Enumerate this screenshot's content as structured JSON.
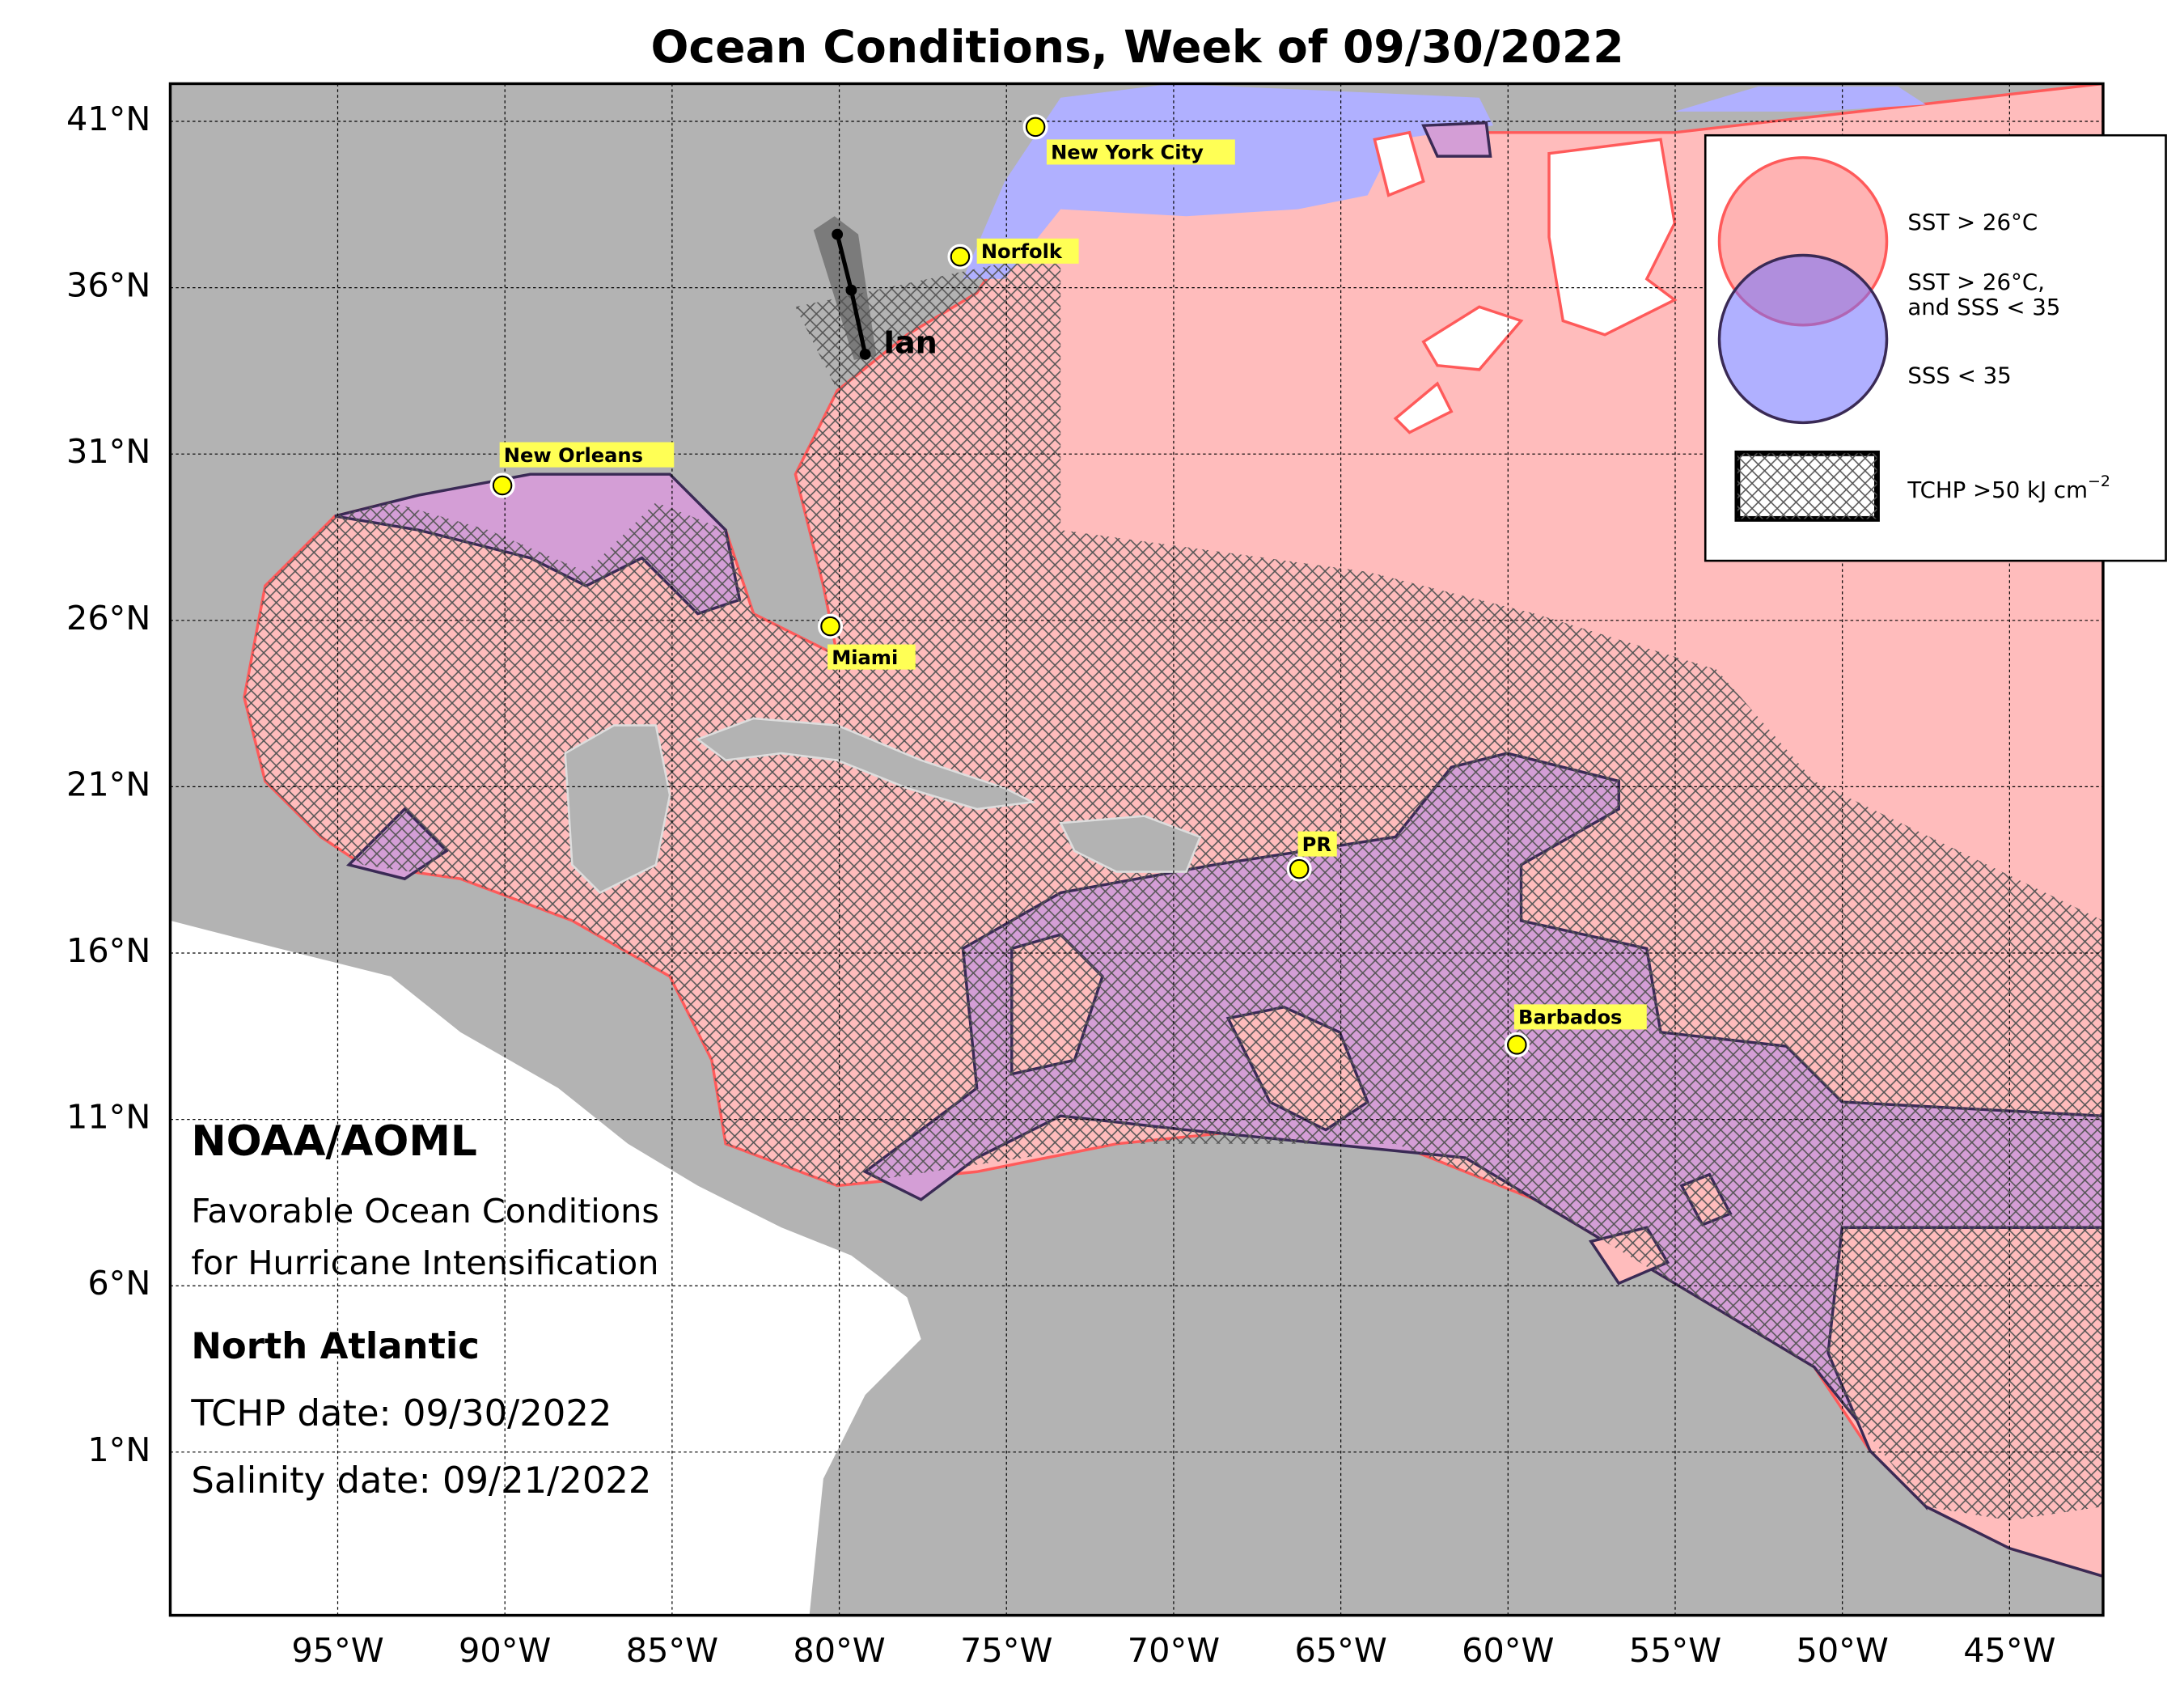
{
  "title": "Ocean Conditions, Week of 09/30/2022",
  "axes": {
    "lat_labels": [
      "41°N",
      "36°N",
      "31°N",
      "26°N",
      "21°N",
      "16°N",
      "11°N",
      "6°N",
      "1°N"
    ],
    "lon_labels": [
      "95°W",
      "90°W",
      "85°W",
      "80°W",
      "75°W",
      "70°W",
      "65°W",
      "60°W",
      "55°W",
      "50°W",
      "45°W"
    ]
  },
  "places": [
    "New York City",
    "Norfolk",
    "New Orleans",
    "Miami",
    "PR",
    "Barbados"
  ],
  "storm": {
    "label": "Ian"
  },
  "legend": {
    "sst": "SST > 26°C",
    "both": [
      "SST > 26°C,",
      "and SSS < 35"
    ],
    "sss": "SSS < 35",
    "tchp": {
      "text": "TCHP >50 kJ cm",
      "superscript": "−2"
    }
  },
  "info": {
    "org": "NOAA/AOML",
    "description": [
      "Favorable Ocean Conditions",
      "for Hurricane Intensification"
    ],
    "region": "North Atlantic",
    "tchp_date": "TCHP date: 09/30/2022",
    "salinity_date": "Salinity date: 09/21/2022"
  }
}
